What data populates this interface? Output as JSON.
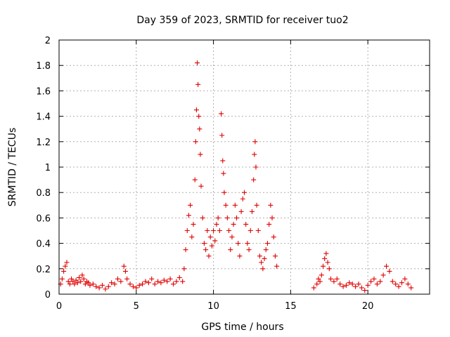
{
  "chart_data": {
    "type": "scatter",
    "title": "Day 359 of 2023, SRMTID for receiver tuo2",
    "xlabel": "GPS time / hours",
    "ylabel": "SRMTID / TECUs",
    "xlim": [
      0,
      24
    ],
    "ylim": [
      0,
      2
    ],
    "xticks": [
      0,
      5,
      10,
      15,
      20
    ],
    "xtick_labels": [
      "0",
      "5",
      "10",
      "15",
      "20"
    ],
    "yticks": [
      0,
      0.2,
      0.4,
      0.6,
      0.8,
      1,
      1.2,
      1.4,
      1.6,
      1.8,
      2
    ],
    "ytick_labels": [
      "0",
      "0.2",
      "0.4",
      "0.6",
      "0.8",
      "1",
      "1.2",
      "1.4",
      "1.6",
      "1.8",
      "2"
    ],
    "grid": true,
    "marker": "+",
    "color": "#e00000",
    "series": [
      {
        "name": "SRMTID",
        "points": [
          [
            0.1,
            0.08
          ],
          [
            0.2,
            0.12
          ],
          [
            0.3,
            0.18
          ],
          [
            0.4,
            0.22
          ],
          [
            0.5,
            0.25
          ],
          [
            0.6,
            0.1
          ],
          [
            0.7,
            0.08
          ],
          [
            0.8,
            0.12
          ],
          [
            0.9,
            0.1
          ],
          [
            1.0,
            0.08
          ],
          [
            1.1,
            0.11
          ],
          [
            1.2,
            0.09
          ],
          [
            1.3,
            0.13
          ],
          [
            1.4,
            0.1
          ],
          [
            1.5,
            0.15
          ],
          [
            1.6,
            0.12
          ],
          [
            1.7,
            0.08
          ],
          [
            1.8,
            0.1
          ],
          [
            1.9,
            0.09
          ],
          [
            2.0,
            0.07
          ],
          [
            2.2,
            0.08
          ],
          [
            2.4,
            0.06
          ],
          [
            2.6,
            0.05
          ],
          [
            2.8,
            0.07
          ],
          [
            3.0,
            0.04
          ],
          [
            3.2,
            0.06
          ],
          [
            3.4,
            0.09
          ],
          [
            3.6,
            0.08
          ],
          [
            3.8,
            0.12
          ],
          [
            4.0,
            0.1
          ],
          [
            4.2,
            0.22
          ],
          [
            4.3,
            0.18
          ],
          [
            4.4,
            0.12
          ],
          [
            4.6,
            0.08
          ],
          [
            4.8,
            0.06
          ],
          [
            5.0,
            0.05
          ],
          [
            5.2,
            0.07
          ],
          [
            5.4,
            0.08
          ],
          [
            5.6,
            0.1
          ],
          [
            5.8,
            0.09
          ],
          [
            6.0,
            0.12
          ],
          [
            6.2,
            0.08
          ],
          [
            6.4,
            0.1
          ],
          [
            6.6,
            0.09
          ],
          [
            6.8,
            0.11
          ],
          [
            7.0,
            0.1
          ],
          [
            7.2,
            0.12
          ],
          [
            7.4,
            0.08
          ],
          [
            7.6,
            0.1
          ],
          [
            7.8,
            0.13
          ],
          [
            8.0,
            0.1
          ],
          [
            8.1,
            0.2
          ],
          [
            8.2,
            0.35
          ],
          [
            8.3,
            0.5
          ],
          [
            8.4,
            0.62
          ],
          [
            8.5,
            0.7
          ],
          [
            8.6,
            0.45
          ],
          [
            8.7,
            0.55
          ],
          [
            8.8,
            0.9
          ],
          [
            8.85,
            1.2
          ],
          [
            8.9,
            1.45
          ],
          [
            8.95,
            1.82
          ],
          [
            9.0,
            1.65
          ],
          [
            9.05,
            1.4
          ],
          [
            9.1,
            1.3
          ],
          [
            9.15,
            1.1
          ],
          [
            9.2,
            0.85
          ],
          [
            9.3,
            0.6
          ],
          [
            9.4,
            0.4
          ],
          [
            9.5,
            0.35
          ],
          [
            9.6,
            0.5
          ],
          [
            9.7,
            0.3
          ],
          [
            9.8,
            0.45
          ],
          [
            9.9,
            0.38
          ],
          [
            10.0,
            0.5
          ],
          [
            10.1,
            0.42
          ],
          [
            10.2,
            0.55
          ],
          [
            10.3,
            0.6
          ],
          [
            10.4,
            0.5
          ],
          [
            10.5,
            1.42
          ],
          [
            10.55,
            1.25
          ],
          [
            10.6,
            1.05
          ],
          [
            10.65,
            0.95
          ],
          [
            10.7,
            0.8
          ],
          [
            10.8,
            0.7
          ],
          [
            10.9,
            0.6
          ],
          [
            11.0,
            0.5
          ],
          [
            11.1,
            0.35
          ],
          [
            11.2,
            0.45
          ],
          [
            11.3,
            0.55
          ],
          [
            11.4,
            0.7
          ],
          [
            11.5,
            0.6
          ],
          [
            11.6,
            0.4
          ],
          [
            11.7,
            0.3
          ],
          [
            11.8,
            0.65
          ],
          [
            11.9,
            0.75
          ],
          [
            12.0,
            0.8
          ],
          [
            12.1,
            0.55
          ],
          [
            12.2,
            0.4
          ],
          [
            12.3,
            0.35
          ],
          [
            12.4,
            0.5
          ],
          [
            12.5,
            0.65
          ],
          [
            12.6,
            0.9
          ],
          [
            12.65,
            1.1
          ],
          [
            12.7,
            1.2
          ],
          [
            12.75,
            1.0
          ],
          [
            12.8,
            0.7
          ],
          [
            12.9,
            0.5
          ],
          [
            13.0,
            0.3
          ],
          [
            13.1,
            0.25
          ],
          [
            13.2,
            0.2
          ],
          [
            13.3,
            0.28
          ],
          [
            13.4,
            0.35
          ],
          [
            13.5,
            0.4
          ],
          [
            13.6,
            0.55
          ],
          [
            13.7,
            0.7
          ],
          [
            13.8,
            0.6
          ],
          [
            13.9,
            0.45
          ],
          [
            14.0,
            0.3
          ],
          [
            14.1,
            0.22
          ],
          [
            16.5,
            0.05
          ],
          [
            16.7,
            0.08
          ],
          [
            16.8,
            0.12
          ],
          [
            16.9,
            0.1
          ],
          [
            17.0,
            0.15
          ],
          [
            17.1,
            0.22
          ],
          [
            17.2,
            0.28
          ],
          [
            17.3,
            0.32
          ],
          [
            17.4,
            0.25
          ],
          [
            17.5,
            0.2
          ],
          [
            17.6,
            0.12
          ],
          [
            17.8,
            0.1
          ],
          [
            18.0,
            0.12
          ],
          [
            18.2,
            0.08
          ],
          [
            18.4,
            0.06
          ],
          [
            18.6,
            0.07
          ],
          [
            18.8,
            0.09
          ],
          [
            19.0,
            0.08
          ],
          [
            19.2,
            0.06
          ],
          [
            19.4,
            0.08
          ],
          [
            19.6,
            0.05
          ],
          [
            19.8,
            0.03
          ],
          [
            20.0,
            0.07
          ],
          [
            20.2,
            0.1
          ],
          [
            20.4,
            0.12
          ],
          [
            20.6,
            0.08
          ],
          [
            20.8,
            0.1
          ],
          [
            21.0,
            0.15
          ],
          [
            21.2,
            0.22
          ],
          [
            21.4,
            0.18
          ],
          [
            21.6,
            0.1
          ],
          [
            21.8,
            0.08
          ],
          [
            22.0,
            0.06
          ],
          [
            22.2,
            0.09
          ],
          [
            22.4,
            0.12
          ],
          [
            22.6,
            0.08
          ],
          [
            22.8,
            0.05
          ]
        ]
      }
    ]
  }
}
